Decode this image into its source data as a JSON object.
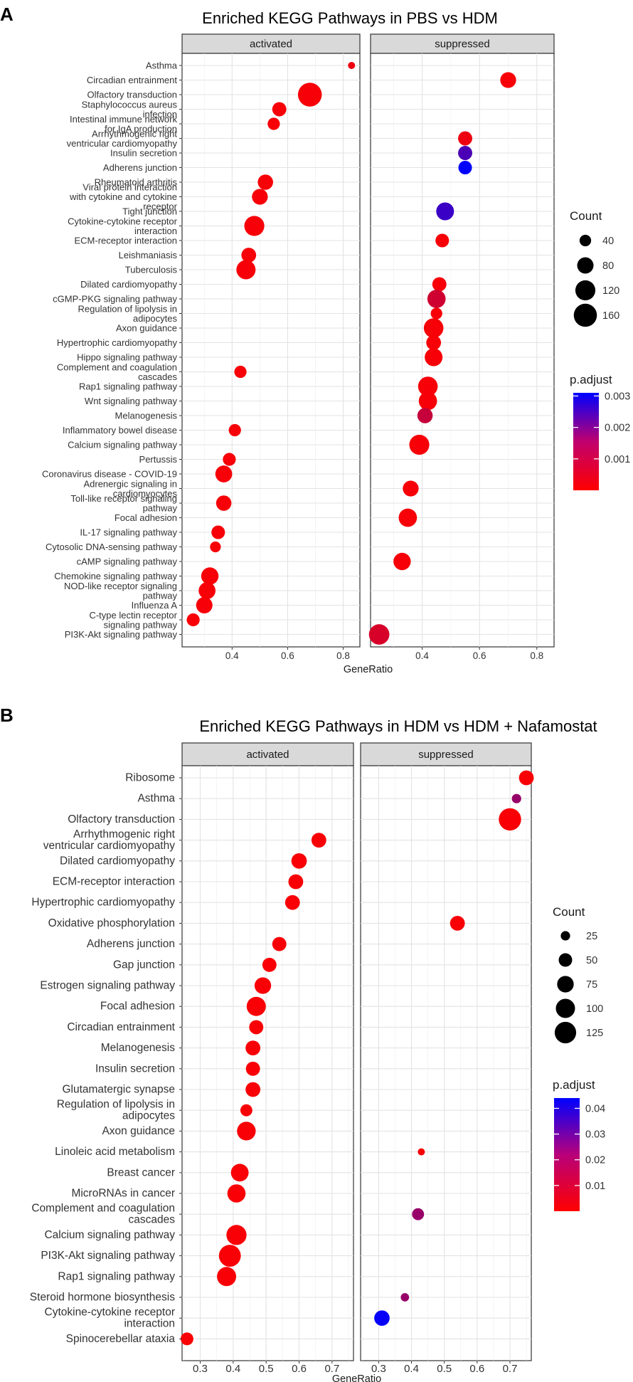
{
  "chart_data": [
    {
      "panel_label": "A",
      "type": "scatter",
      "title": "Enriched KEGG Pathways in PBS vs HDM",
      "xlabel": "GeneRatio",
      "ylabel": "",
      "facets": [
        "activated",
        "suppressed"
      ],
      "xlim": [
        0.22,
        0.86
      ],
      "x_ticks": [
        0.4,
        0.6,
        0.8
      ],
      "x_tick_labels": [
        "0.4",
        "0.6",
        "0.8"
      ],
      "categories": [
        "Asthma",
        "Circadian entrainment",
        "Olfactory transduction",
        "Staphylococcus aureus\ninfection",
        "Intestinal immune network\nfor IgA production",
        "Arrhythmogenic right\nventricular cardiomyopathy",
        "Insulin secretion",
        "Adherens junction",
        "Rheumatoid arthritis",
        "Viral protein interaction\nwith cytokine and cytokine\nreceptor",
        "Tight junction",
        "Cytokine-cytokine receptor\ninteraction",
        "ECM-receptor interaction",
        "Leishmaniasis",
        "Tuberculosis",
        "Dilated cardiomyopathy",
        "cGMP-PKG signaling pathway",
        "Regulation of lipolysis in\nadipocytes",
        "Axon guidance",
        "Hypertrophic cardiomyopathy",
        "Hippo signaling pathway",
        "Complement and coagulation\ncascades",
        "Rap1 signaling pathway",
        "Wnt signaling pathway",
        "Melanogenesis",
        "Inflammatory bowel disease",
        "Calcium signaling pathway",
        "Pertussis",
        "Coronavirus disease - COVID-19",
        "Adrenergic signaling in\ncardiomyocytes",
        "Toll-like receptor signaling\npathway",
        "Focal adhesion",
        "IL-17 signaling pathway",
        "Cytosolic DNA-sensing pathway",
        "cAMP signaling pathway",
        "Chemokine signaling pathway",
        "NOD-like receptor signaling\npathway",
        "Influenza A",
        "C-type lectin receptor\nsignaling pathway",
        "PI3K-Akt signaling pathway"
      ],
      "series": [
        {
          "name": "activated",
          "points": [
            {
              "term": "Asthma",
              "x": 0.83,
              "count": 15,
              "p_adjust": 0.0002
            },
            {
              "term": "Olfactory transduction",
              "x": 0.68,
              "count": 170,
              "p_adjust": 0.0001
            },
            {
              "term": "Staphylococcus aureus\ninfection",
              "x": 0.57,
              "count": 60,
              "p_adjust": 0.0001
            },
            {
              "term": "Intestinal immune network\nfor IgA production",
              "x": 0.55,
              "count": 45,
              "p_adjust": 0.0001
            },
            {
              "term": "Rheumatoid arthritis",
              "x": 0.52,
              "count": 70,
              "p_adjust": 0.0001
            },
            {
              "term": "Viral protein interaction\nwith cytokine and cytokine\nreceptor",
              "x": 0.5,
              "count": 75,
              "p_adjust": 0.0001
            },
            {
              "term": "Cytokine-cytokine receptor\ninteraction",
              "x": 0.48,
              "count": 120,
              "p_adjust": 0.0001
            },
            {
              "term": "Leishmaniasis",
              "x": 0.46,
              "count": 65,
              "p_adjust": 0.0001
            },
            {
              "term": "Tuberculosis",
              "x": 0.45,
              "count": 110,
              "p_adjust": 0.0001
            },
            {
              "term": "Complement and coagulation\ncascades",
              "x": 0.43,
              "count": 45,
              "p_adjust": 0.0001
            },
            {
              "term": "Inflammatory bowel disease",
              "x": 0.41,
              "count": 45,
              "p_adjust": 0.0001
            },
            {
              "term": "Pertussis",
              "x": 0.39,
              "count": 50,
              "p_adjust": 0.0001
            },
            {
              "term": "Coronavirus disease - COVID-19",
              "x": 0.37,
              "count": 85,
              "p_adjust": 0.0001
            },
            {
              "term": "Toll-like receptor signaling\npathway",
              "x": 0.37,
              "count": 70,
              "p_adjust": 0.0001
            },
            {
              "term": "IL-17 signaling pathway",
              "x": 0.35,
              "count": 55,
              "p_adjust": 0.0001
            },
            {
              "term": "Cytosolic DNA-sensing pathway",
              "x": 0.34,
              "count": 35,
              "p_adjust": 0.0001
            },
            {
              "term": "Chemokine signaling pathway",
              "x": 0.32,
              "count": 90,
              "p_adjust": 0.0001
            },
            {
              "term": "NOD-like receptor signaling\npathway",
              "x": 0.31,
              "count": 85,
              "p_adjust": 0.0001
            },
            {
              "term": "Influenza A",
              "x": 0.3,
              "count": 80,
              "p_adjust": 0.0001
            },
            {
              "term": "C-type lectin receptor\nsignaling pathway",
              "x": 0.26,
              "count": 50,
              "p_adjust": 0.0001
            }
          ]
        },
        {
          "name": "suppressed",
          "points": [
            {
              "term": "Circadian entrainment",
              "x": 0.7,
              "count": 75,
              "p_adjust": 0.0001
            },
            {
              "term": "Arrhythmogenic right\nventricular cardiomyopathy",
              "x": 0.55,
              "count": 60,
              "p_adjust": 0.0002
            },
            {
              "term": "Insulin secretion",
              "x": 0.55,
              "count": 60,
              "p_adjust": 0.0022
            },
            {
              "term": "Adherens junction",
              "x": 0.55,
              "count": 55,
              "p_adjust": 0.0031
            },
            {
              "term": "Tight junction",
              "x": 0.48,
              "count": 95,
              "p_adjust": 0.0024
            },
            {
              "term": "ECM-receptor interaction",
              "x": 0.47,
              "count": 55,
              "p_adjust": 0.0001
            },
            {
              "term": "Dilated cardiomyopathy",
              "x": 0.46,
              "count": 60,
              "p_adjust": 0.0001
            },
            {
              "term": "cGMP-PKG signaling pathway",
              "x": 0.45,
              "count": 100,
              "p_adjust": 0.0006
            },
            {
              "term": "Regulation of lipolysis in\nadipocytes",
              "x": 0.45,
              "count": 40,
              "p_adjust": 0.0001
            },
            {
              "term": "Axon guidance",
              "x": 0.44,
              "count": 115,
              "p_adjust": 0.0001
            },
            {
              "term": "Hypertrophic cardiomyopathy",
              "x": 0.44,
              "count": 65,
              "p_adjust": 0.0001
            },
            {
              "term": "Hippo signaling pathway",
              "x": 0.44,
              "count": 95,
              "p_adjust": 0.0001
            },
            {
              "term": "Rap1 signaling pathway",
              "x": 0.42,
              "count": 115,
              "p_adjust": 0.0001
            },
            {
              "term": "Wnt signaling pathway",
              "x": 0.42,
              "count": 100,
              "p_adjust": 0.0001
            },
            {
              "term": "Melanogenesis",
              "x": 0.41,
              "count": 70,
              "p_adjust": 0.0007
            },
            {
              "term": "Calcium signaling pathway",
              "x": 0.39,
              "count": 120,
              "p_adjust": 0.0001
            },
            {
              "term": "Adrenergic signaling in\ncardiomyocytes",
              "x": 0.36,
              "count": 75,
              "p_adjust": 0.0001
            },
            {
              "term": "Focal adhesion",
              "x": 0.35,
              "count": 100,
              "p_adjust": 0.0001
            },
            {
              "term": "cAMP signaling pathway",
              "x": 0.33,
              "count": 90,
              "p_adjust": 0.0001
            },
            {
              "term": "PI3K-Akt signaling pathway",
              "x": 0.25,
              "count": 125,
              "p_adjust": 0.0005
            }
          ]
        }
      ],
      "size_legend": {
        "title": "Count",
        "labels": [
          "40",
          "80",
          "120",
          "160"
        ],
        "values": [
          40,
          80,
          120,
          160
        ]
      },
      "color_legend": {
        "title": "p.adjust",
        "labels": [
          "0.001",
          "0.002",
          "0.003"
        ],
        "values": [
          0.001,
          0.002,
          0.003
        ],
        "range": [
          0.0,
          0.0031
        ],
        "low_color": "#ff0000",
        "high_color": "#0000ff"
      }
    },
    {
      "panel_label": "B",
      "type": "scatter",
      "title": "Enriched KEGG Pathways in HDM vs HDM + Nafamostat",
      "xlabel": "GeneRatio",
      "ylabel": "",
      "facets": [
        "activated",
        "suppressed"
      ],
      "xlim": [
        0.245,
        0.765
      ],
      "x_ticks": [
        0.3,
        0.4,
        0.5,
        0.6,
        0.7
      ],
      "x_tick_labels": [
        "0.3",
        "0.4",
        "0.5",
        "0.6",
        "0.7"
      ],
      "categories": [
        "Ribosome",
        "Asthma",
        "Olfactory transduction",
        "Arrhythmogenic right\nventricular cardiomyopathy",
        "Dilated cardiomyopathy",
        "ECM-receptor interaction",
        "Hypertrophic cardiomyopathy",
        "Oxidative phosphorylation",
        "Adherens junction",
        "Gap junction",
        "Estrogen signaling pathway",
        "Focal adhesion",
        "Circadian entrainment",
        "Melanogenesis",
        "Insulin secretion",
        "Glutamatergic synapse",
        "Regulation of lipolysis in\nadipocytes",
        "Axon guidance",
        "Linoleic acid metabolism",
        "Breast cancer",
        "MicroRNAs in cancer",
        "Complement and coagulation\ncascades",
        "Calcium signaling pathway",
        "PI3K-Akt signaling pathway",
        "Rap1 signaling pathway",
        "Steroid hormone biosynthesis",
        "Cytokine-cytokine receptor\ninteraction",
        "Spinocerebellar ataxia"
      ],
      "series": [
        {
          "name": "activated",
          "points": [
            {
              "term": "Arrhythmogenic right\nventricular cardiomyopathy",
              "x": 0.66,
              "count": 60,
              "p_adjust": 0.001
            },
            {
              "term": "Dilated cardiomyopathy",
              "x": 0.6,
              "count": 65,
              "p_adjust": 0.001
            },
            {
              "term": "ECM-receptor interaction",
              "x": 0.59,
              "count": 60,
              "p_adjust": 0.001
            },
            {
              "term": "Hypertrophic cardiomyopathy",
              "x": 0.58,
              "count": 60,
              "p_adjust": 0.001
            },
            {
              "term": "Adherens junction",
              "x": 0.54,
              "count": 55,
              "p_adjust": 0.001
            },
            {
              "term": "Gap junction",
              "x": 0.51,
              "count": 55,
              "p_adjust": 0.001
            },
            {
              "term": "Estrogen signaling pathway",
              "x": 0.49,
              "count": 75,
              "p_adjust": 0.001
            },
            {
              "term": "Focal adhesion",
              "x": 0.47,
              "count": 100,
              "p_adjust": 0.001
            },
            {
              "term": "Circadian entrainment",
              "x": 0.47,
              "count": 55,
              "p_adjust": 0.001
            },
            {
              "term": "Melanogenesis",
              "x": 0.46,
              "count": 60,
              "p_adjust": 0.001
            },
            {
              "term": "Insulin secretion",
              "x": 0.46,
              "count": 55,
              "p_adjust": 0.001
            },
            {
              "term": "Glutamatergic synapse",
              "x": 0.46,
              "count": 60,
              "p_adjust": 0.001
            },
            {
              "term": "Regulation of lipolysis in\nadipocytes",
              "x": 0.44,
              "count": 40,
              "p_adjust": 0.001
            },
            {
              "term": "Axon guidance",
              "x": 0.44,
              "count": 95,
              "p_adjust": 0.001
            },
            {
              "term": "Breast cancer",
              "x": 0.42,
              "count": 85,
              "p_adjust": 0.001
            },
            {
              "term": "MicroRNAs in cancer",
              "x": 0.41,
              "count": 90,
              "p_adjust": 0.001
            },
            {
              "term": "Calcium signaling pathway",
              "x": 0.41,
              "count": 110,
              "p_adjust": 0.001
            },
            {
              "term": "PI3K-Akt signaling pathway",
              "x": 0.39,
              "count": 130,
              "p_adjust": 0.001
            },
            {
              "term": "Rap1 signaling pathway",
              "x": 0.38,
              "count": 100,
              "p_adjust": 0.001
            },
            {
              "term": "Spinocerebellar ataxia",
              "x": 0.26,
              "count": 45,
              "p_adjust": 0.001
            }
          ]
        },
        {
          "name": "suppressed",
          "points": [
            {
              "term": "Ribosome",
              "x": 0.75,
              "count": 60,
              "p_adjust": 0.001
            },
            {
              "term": "Asthma",
              "x": 0.72,
              "count": 25,
              "p_adjust": 0.018
            },
            {
              "term": "Olfactory transduction",
              "x": 0.7,
              "count": 135,
              "p_adjust": 0.001
            },
            {
              "term": "Oxidative phosphorylation",
              "x": 0.54,
              "count": 60,
              "p_adjust": 0.001
            },
            {
              "term": "Linoleic acid metabolism",
              "x": 0.43,
              "count": 15,
              "p_adjust": 0.001
            },
            {
              "term": "Complement and coagulation\ncascades",
              "x": 0.42,
              "count": 40,
              "p_adjust": 0.018
            },
            {
              "term": "Steroid hormone biosynthesis",
              "x": 0.38,
              "count": 20,
              "p_adjust": 0.018
            },
            {
              "term": "Cytokine-cytokine receptor\ninteraction",
              "x": 0.31,
              "count": 65,
              "p_adjust": 0.043
            }
          ]
        }
      ],
      "size_legend": {
        "title": "Count",
        "labels": [
          "25",
          "50",
          "75",
          "100",
          "125"
        ],
        "values": [
          25,
          50,
          75,
          100,
          125
        ]
      },
      "color_legend": {
        "title": "p.adjust",
        "labels": [
          "0.01",
          "0.02",
          "0.03",
          "0.04"
        ],
        "values": [
          0.01,
          0.02,
          0.03,
          0.04
        ],
        "range": [
          0.0,
          0.044
        ],
        "low_color": "#ff0000",
        "high_color": "#0000ff"
      }
    }
  ]
}
